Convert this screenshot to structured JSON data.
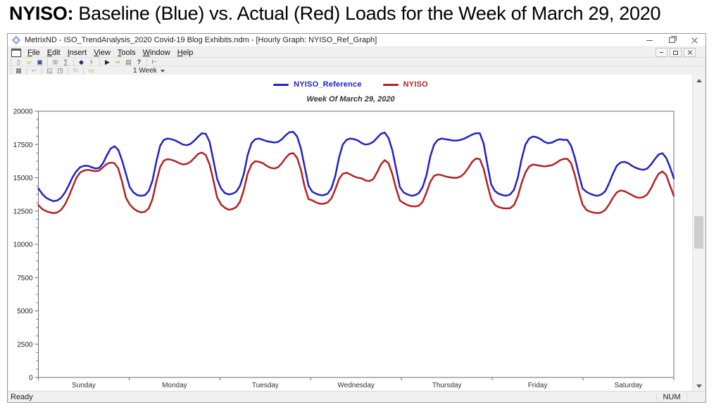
{
  "page_title": {
    "bold": "NYISO:",
    "rest": " Baseline (Blue) vs. Actual (Red) Loads for the Week of March 29, 2020"
  },
  "window": {
    "title": "MetrixND - ISO_TrendAnalysis_2020 Covid-19 Blog Exhibits.ndm - [Hourly Graph: NYISO_Ref_Graph]"
  },
  "menu": {
    "items": [
      {
        "label": "File"
      },
      {
        "label": "Edit"
      },
      {
        "label": "Insert"
      },
      {
        "label": "View"
      },
      {
        "label": "Tools"
      },
      {
        "label": "Window"
      },
      {
        "label": "Help"
      }
    ]
  },
  "toolbar1": {
    "items": [
      {
        "name": "new-document-icon",
        "glyph": "▯",
        "color": "#777777"
      },
      {
        "name": "open-file-icon",
        "glyph": "▱",
        "color": "#c89600"
      },
      {
        "name": "save-icon",
        "glyph": "▣",
        "color": "#27408b"
      },
      {
        "sep": true
      },
      {
        "name": "transform-table-icon",
        "glyph": "⊞",
        "color": "#8a8a5a"
      },
      {
        "name": "equation-icon",
        "glyph": "∑",
        "color": "#3a7d23"
      },
      {
        "sep": true
      },
      {
        "name": "parameter-icon",
        "glyph": "◆",
        "color": "#1b2a6b"
      },
      {
        "name": "tree-view-icon",
        "glyph": "⊦",
        "color": "#555555"
      },
      {
        "sep": true
      },
      {
        "name": "run-icon",
        "glyph": "▶",
        "color": "#222222"
      },
      {
        "name": "export-icon",
        "glyph": "⇨",
        "color": "#c89600"
      },
      {
        "name": "print-icon",
        "glyph": "▤",
        "color": "#666666"
      },
      {
        "name": "help-icon",
        "glyph": "?",
        "color": "#27408b"
      },
      {
        "sep": true
      },
      {
        "name": "navigator-icon",
        "glyph": "⊢",
        "color": "#555555"
      }
    ]
  },
  "toolbar2": {
    "items": [
      {
        "name": "graph-grid-icon",
        "glyph": "▦",
        "color": "#555555"
      },
      {
        "sep": true
      },
      {
        "name": "back-icon",
        "glyph": "↩",
        "color": "#b0b0b0"
      },
      {
        "sep": true
      },
      {
        "name": "window-cascade-icon",
        "glyph": "◱",
        "color": "#556070"
      },
      {
        "name": "window-tile-icon",
        "glyph": "◳",
        "color": "#556070"
      },
      {
        "sep": true
      },
      {
        "name": "refresh-icon",
        "glyph": "↻",
        "color": "#b0b0b0"
      },
      {
        "sep": true
      },
      {
        "name": "comment-icon",
        "glyph": "▭",
        "color": "#c8a000"
      }
    ],
    "range_selector": {
      "value": "1 Week"
    }
  },
  "statusbar": {
    "message": "Ready",
    "num_indicator": "NUM"
  },
  "chart_data": {
    "type": "line",
    "title": "Week Of March 29, 2020",
    "xlabel": "",
    "ylabel": "",
    "ylim": [
      0,
      20000
    ],
    "y_major_step": 2500,
    "y_minor_step": 625,
    "y_tick_labels": [
      0,
      2500,
      5000,
      7500,
      10000,
      12500,
      15000,
      17500,
      20000
    ],
    "grid": false,
    "legend_position": "top-center",
    "x_unit": "hour-of-week",
    "categories": [
      "Sunday",
      "Monday",
      "Tuesday",
      "Wednesday",
      "Thursday",
      "Friday",
      "Saturday"
    ],
    "points_per_day": 24,
    "series": [
      {
        "name": "NYISO_Reference",
        "color": "#2121c8",
        "values": [
          14200,
          13800,
          13500,
          13350,
          13250,
          13300,
          13500,
          13900,
          14450,
          15050,
          15500,
          15800,
          15900,
          15900,
          15800,
          15700,
          15750,
          16100,
          16700,
          17200,
          17370,
          17100,
          16300,
          15300,
          14300,
          13900,
          13700,
          13650,
          13700,
          14000,
          14800,
          16200,
          17400,
          17850,
          17950,
          17900,
          17800,
          17650,
          17500,
          17450,
          17550,
          17800,
          18100,
          18350,
          18300,
          17700,
          16300,
          14900,
          14200,
          13850,
          13750,
          13800,
          13950,
          14400,
          15300,
          16700,
          17600,
          17900,
          17950,
          17850,
          17750,
          17700,
          17650,
          17700,
          17900,
          18200,
          18430,
          18450,
          18100,
          17200,
          15800,
          14400,
          13950,
          13800,
          13700,
          13700,
          13800,
          14200,
          15100,
          16500,
          17500,
          17850,
          17950,
          17900,
          17800,
          17600,
          17500,
          17550,
          17700,
          18000,
          18300,
          18400,
          18000,
          17100,
          15700,
          14300,
          13900,
          13750,
          13650,
          13700,
          13850,
          14300,
          15200,
          16600,
          17500,
          17850,
          17950,
          17900,
          17850,
          17800,
          17800,
          17850,
          17950,
          18100,
          18250,
          18350,
          18350,
          17600,
          16000,
          14500,
          14000,
          13800,
          13700,
          13650,
          13750,
          14100,
          15000,
          16400,
          17500,
          17950,
          18100,
          18050,
          17900,
          17700,
          17600,
          17650,
          17800,
          17900,
          17850,
          17850,
          17400,
          16500,
          15300,
          14200,
          13950,
          13800,
          13700,
          13650,
          13750,
          14000,
          14600,
          15300,
          15900,
          16150,
          16200,
          16100,
          15900,
          15750,
          15650,
          15600,
          15700,
          16000,
          16400,
          16750,
          16850,
          16500,
          15800,
          14950
        ]
      },
      {
        "name": "NYISO",
        "color": "#b22222",
        "values": [
          12950,
          12650,
          12500,
          12400,
          12350,
          12400,
          12600,
          13000,
          13600,
          14300,
          15000,
          15400,
          15550,
          15600,
          15550,
          15500,
          15550,
          15800,
          16050,
          16150,
          16100,
          15700,
          14700,
          13500,
          13000,
          12700,
          12500,
          12400,
          12450,
          12700,
          13400,
          14700,
          15800,
          16300,
          16400,
          16350,
          16250,
          16100,
          16000,
          16050,
          16200,
          16500,
          16800,
          16900,
          16700,
          16000,
          14800,
          13500,
          13000,
          12750,
          12600,
          12650,
          12800,
          13200,
          14100,
          15300,
          16000,
          16250,
          16200,
          16100,
          15900,
          15750,
          15700,
          15800,
          16100,
          16500,
          16800,
          16850,
          16500,
          15600,
          14300,
          13400,
          13300,
          13150,
          13050,
          13050,
          13150,
          13450,
          14100,
          14900,
          15300,
          15380,
          15250,
          15100,
          15000,
          14950,
          14800,
          14750,
          14900,
          15400,
          16000,
          16330,
          16100,
          15300,
          14200,
          13300,
          13100,
          12950,
          12870,
          12850,
          12900,
          13200,
          13900,
          14700,
          15150,
          15250,
          15200,
          15100,
          15050,
          15000,
          15000,
          15100,
          15350,
          15750,
          16200,
          16450,
          16400,
          15700,
          14500,
          13400,
          12950,
          12800,
          12720,
          12700,
          12720,
          12950,
          13600,
          14600,
          15400,
          15850,
          16000,
          15950,
          15900,
          15850,
          15900,
          15950,
          16100,
          16300,
          16420,
          16430,
          16100,
          15200,
          14000,
          13000,
          12600,
          12450,
          12380,
          12350,
          12400,
          12600,
          13000,
          13500,
          13900,
          14050,
          14000,
          13850,
          13700,
          13550,
          13500,
          13550,
          13750,
          14200,
          14800,
          15300,
          15480,
          15200,
          14400,
          13650
        ]
      }
    ]
  }
}
